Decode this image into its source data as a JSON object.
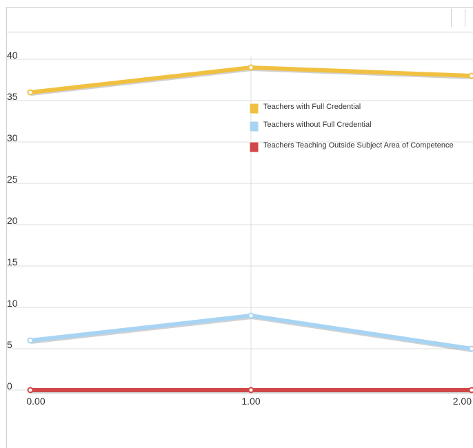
{
  "toolbar": {
    "buttons": [
      "toolbar-button-1",
      "toolbar-button-2"
    ]
  },
  "chart_data": {
    "type": "line",
    "x": [
      0,
      1,
      2
    ],
    "x_tick_labels": [
      "0.00",
      "1.00",
      "2.00"
    ],
    "y_ticks": [
      0,
      5,
      10,
      15,
      20,
      25,
      30,
      35,
      40
    ],
    "ylim": [
      0,
      40
    ],
    "grid": true,
    "legend_position": "top-center",
    "series": [
      {
        "name": "Teachers with Full Credential",
        "values": [
          36,
          39,
          38
        ],
        "color": "#f0c040"
      },
      {
        "name": "Teachers without Full Credential",
        "values": [
          6,
          9,
          5
        ],
        "color": "#a8d4f4"
      },
      {
        "name": "Teachers Teaching Outside Subject Area of Competence",
        "values": [
          0,
          0,
          0
        ],
        "color": "#d04848"
      }
    ]
  }
}
